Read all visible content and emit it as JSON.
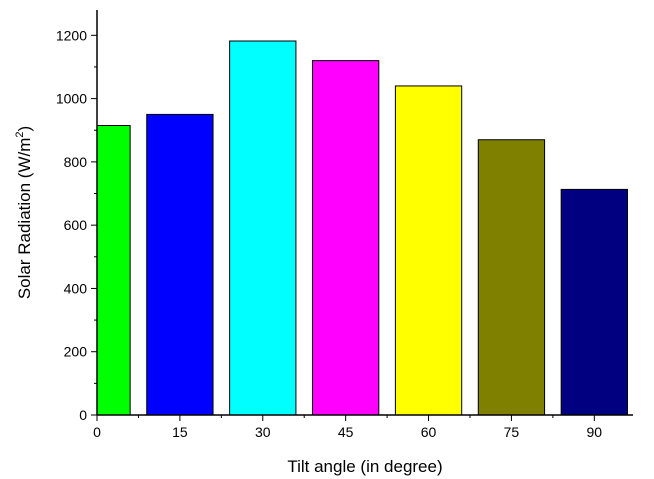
{
  "chart_data": {
    "type": "bar",
    "xlabel": "Tilt angle (in degree)",
    "ylabel": "Solar Radiation (W/m",
    "ylabel_sup": "2",
    "ylabel_close": ")",
    "categories": [
      "0",
      "15",
      "30",
      "45",
      "60",
      "75",
      "90"
    ],
    "x": [
      0,
      15,
      30,
      45,
      60,
      75,
      90
    ],
    "values": [
      915,
      950,
      1182,
      1120,
      1040,
      870,
      713
    ],
    "colors": [
      "#00ff00",
      "#0000ff",
      "#00ffff",
      "#ff00ff",
      "#ffff00",
      "#808000",
      "#000080"
    ],
    "ylim": [
      0,
      1280
    ],
    "xlim": [
      0,
      97
    ],
    "yticks": [
      0,
      200,
      400,
      600,
      800,
      1000,
      1200
    ],
    "xticks": [
      0,
      15,
      30,
      45,
      60,
      75,
      90
    ],
    "bar_width": 12,
    "grid": false,
    "legend": "none"
  }
}
